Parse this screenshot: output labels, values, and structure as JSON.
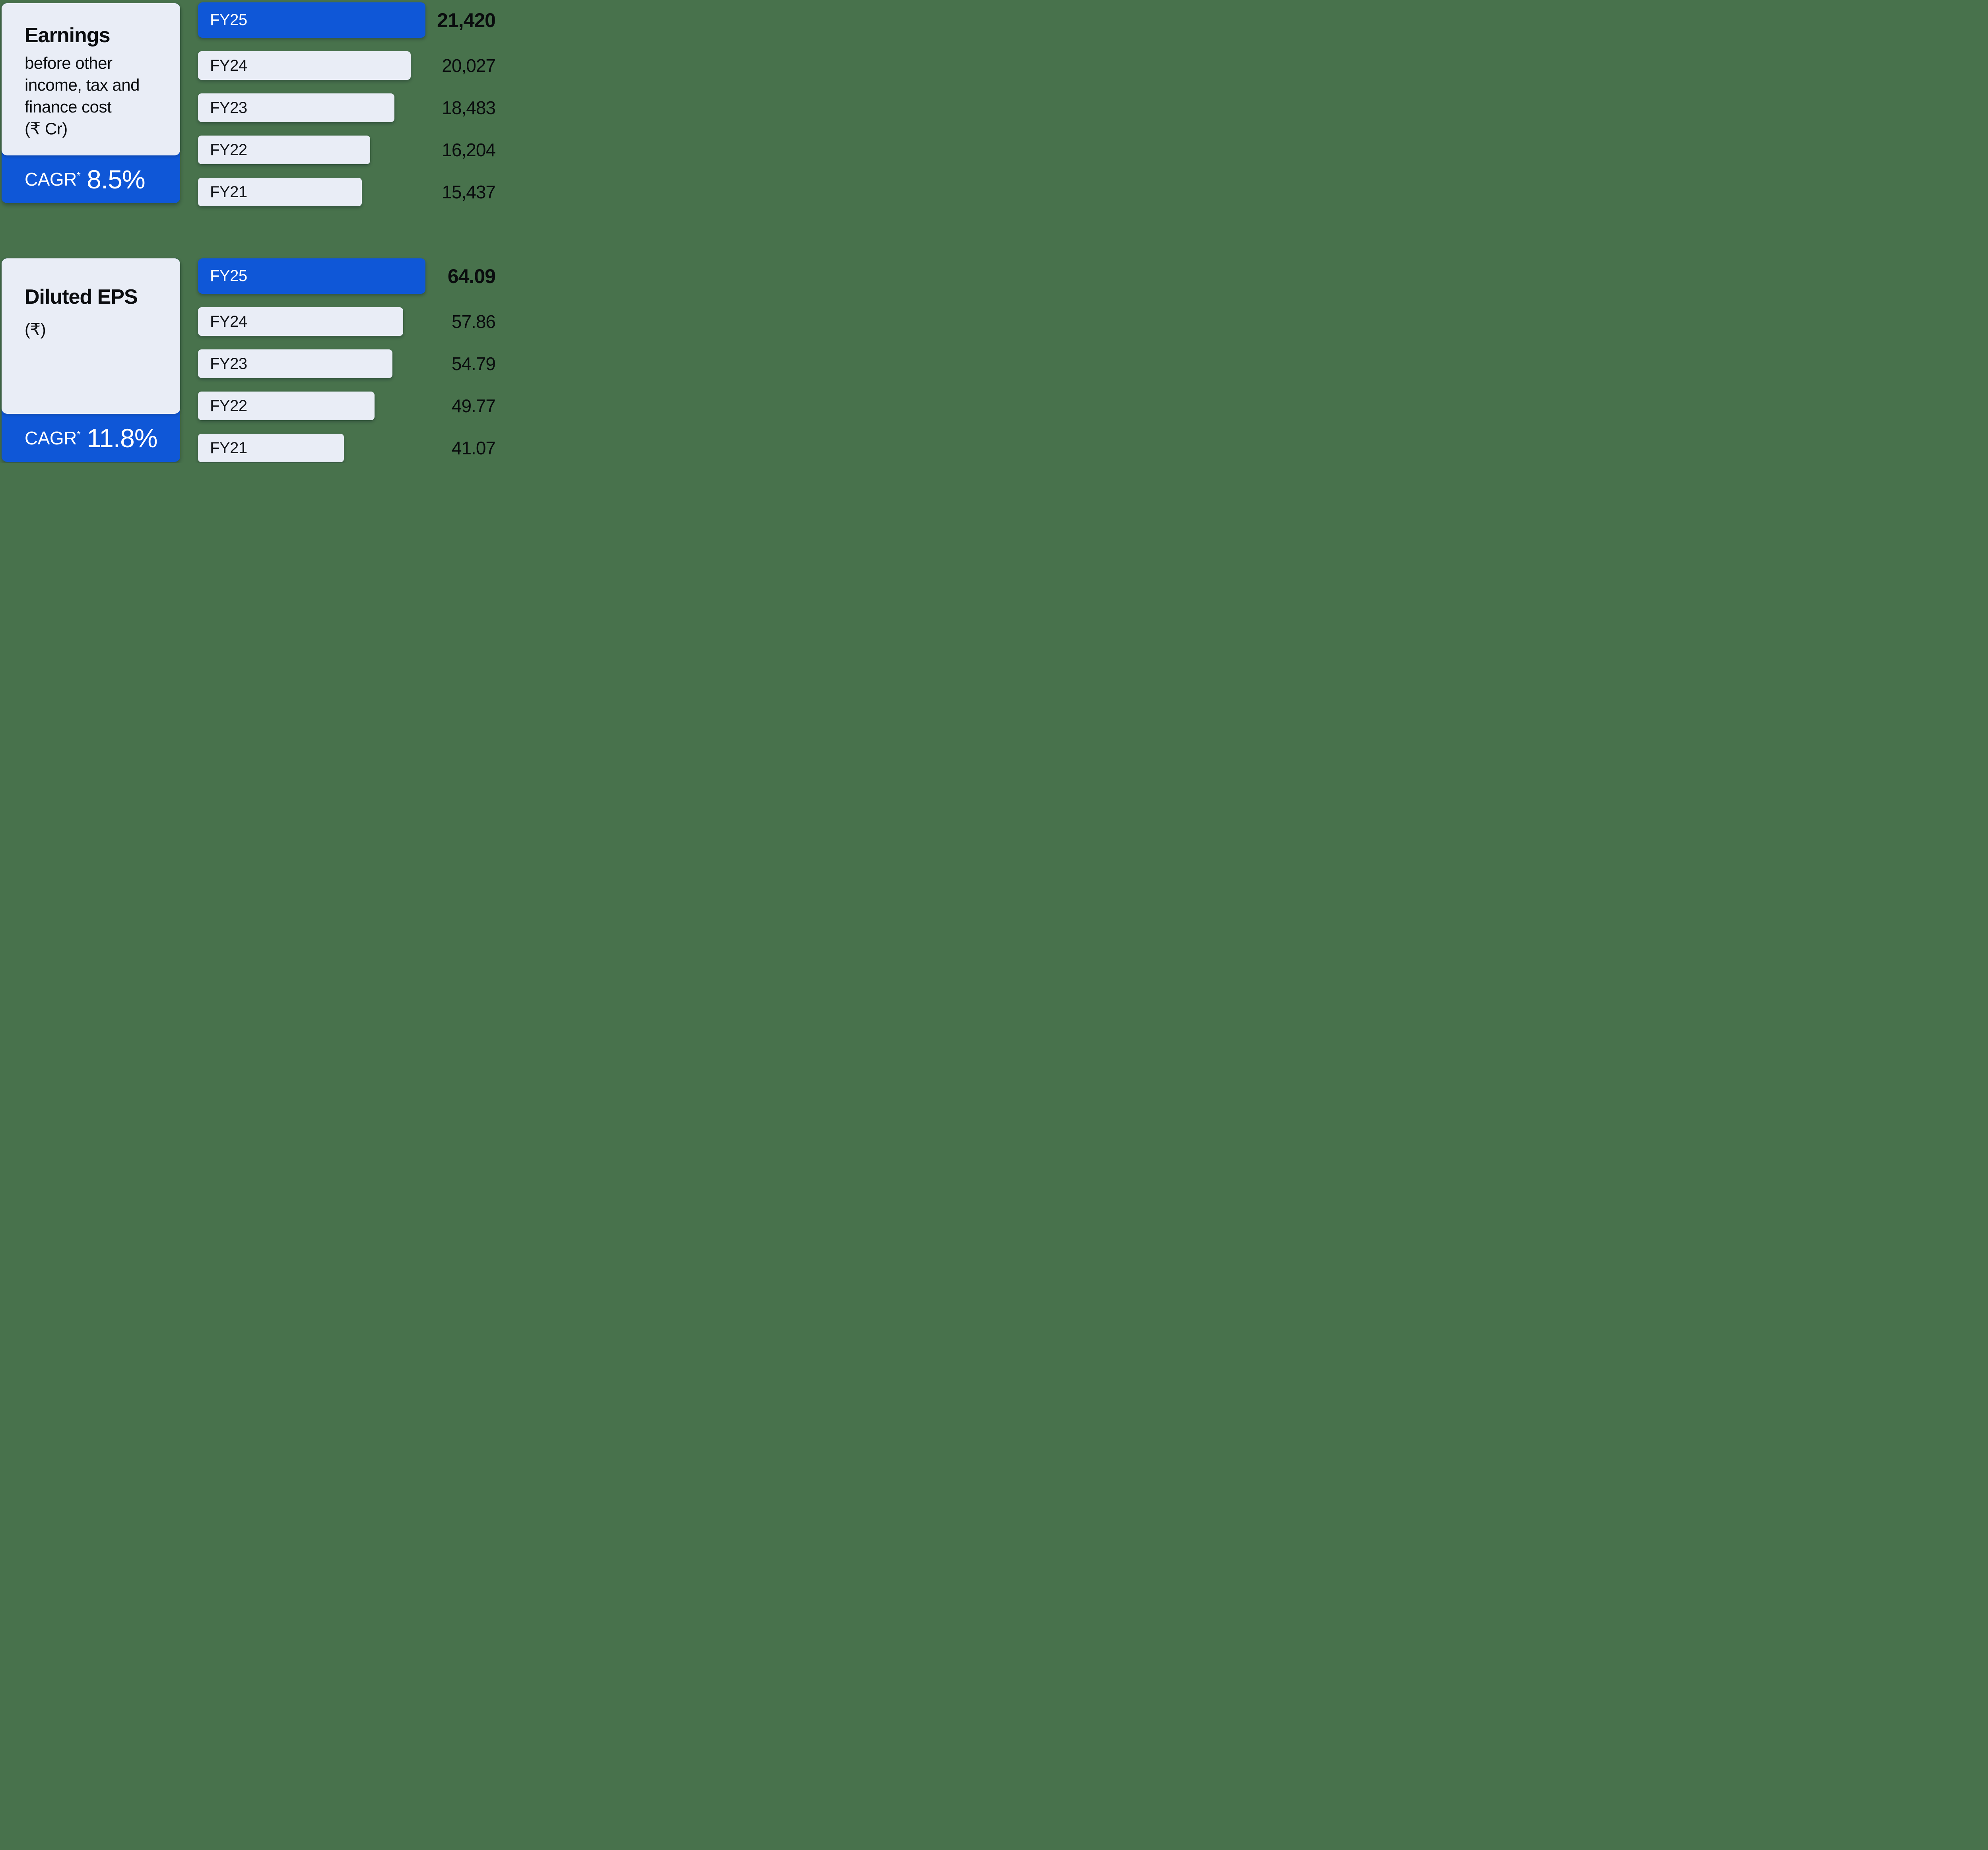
{
  "canvas": {
    "background_color": "#48724c",
    "accent_color": "#0f57d7",
    "surface_color": "#e9edf6",
    "text_color": "#0b0d10",
    "text_on_accent_color": "#ffffff"
  },
  "sections": [
    {
      "card": {
        "title": "Earnings",
        "subtitle_lines": [
          "before other",
          "income, tax and",
          "finance cost",
          "(₹ Cr)"
        ],
        "cagr_label": "CAGR",
        "cagr_superscript": "*",
        "cagr_value": "8.5%"
      }
    },
    {
      "card": {
        "title": "Diluted EPS",
        "subtitle_lines": [
          "(₹)"
        ],
        "cagr_label": "CAGR",
        "cagr_superscript": "*",
        "cagr_value": "11.8%"
      }
    }
  ],
  "chart_data": [
    {
      "type": "bar",
      "orientation": "horizontal",
      "title": "Earnings before other income, tax and finance cost (₹ Cr)",
      "categories": [
        "FY25",
        "FY24",
        "FY23",
        "FY22",
        "FY21"
      ],
      "values": [
        21420,
        20027,
        18483,
        16204,
        15437
      ],
      "value_labels": [
        "21,420",
        "20,027",
        "18,483",
        "16,204",
        "15,437"
      ],
      "highlight_index": 0,
      "xlim": [
        0,
        21420
      ],
      "cagr": "8.5%",
      "bar_color": "#e9edf6",
      "highlight_color": "#0f57d7",
      "grid": false,
      "legend": "none"
    },
    {
      "type": "bar",
      "orientation": "horizontal",
      "title": "Diluted EPS (₹)",
      "categories": [
        "FY25",
        "FY24",
        "FY23",
        "FY22",
        "FY21"
      ],
      "values": [
        64.09,
        57.86,
        54.79,
        49.77,
        41.07
      ],
      "value_labels": [
        "64.09",
        "57.86",
        "54.79",
        "49.77",
        "41.07"
      ],
      "highlight_index": 0,
      "xlim": [
        0,
        64.09
      ],
      "cagr": "11.8%",
      "bar_color": "#e9edf6",
      "highlight_color": "#0f57d7",
      "grid": false,
      "legend": "none"
    }
  ]
}
